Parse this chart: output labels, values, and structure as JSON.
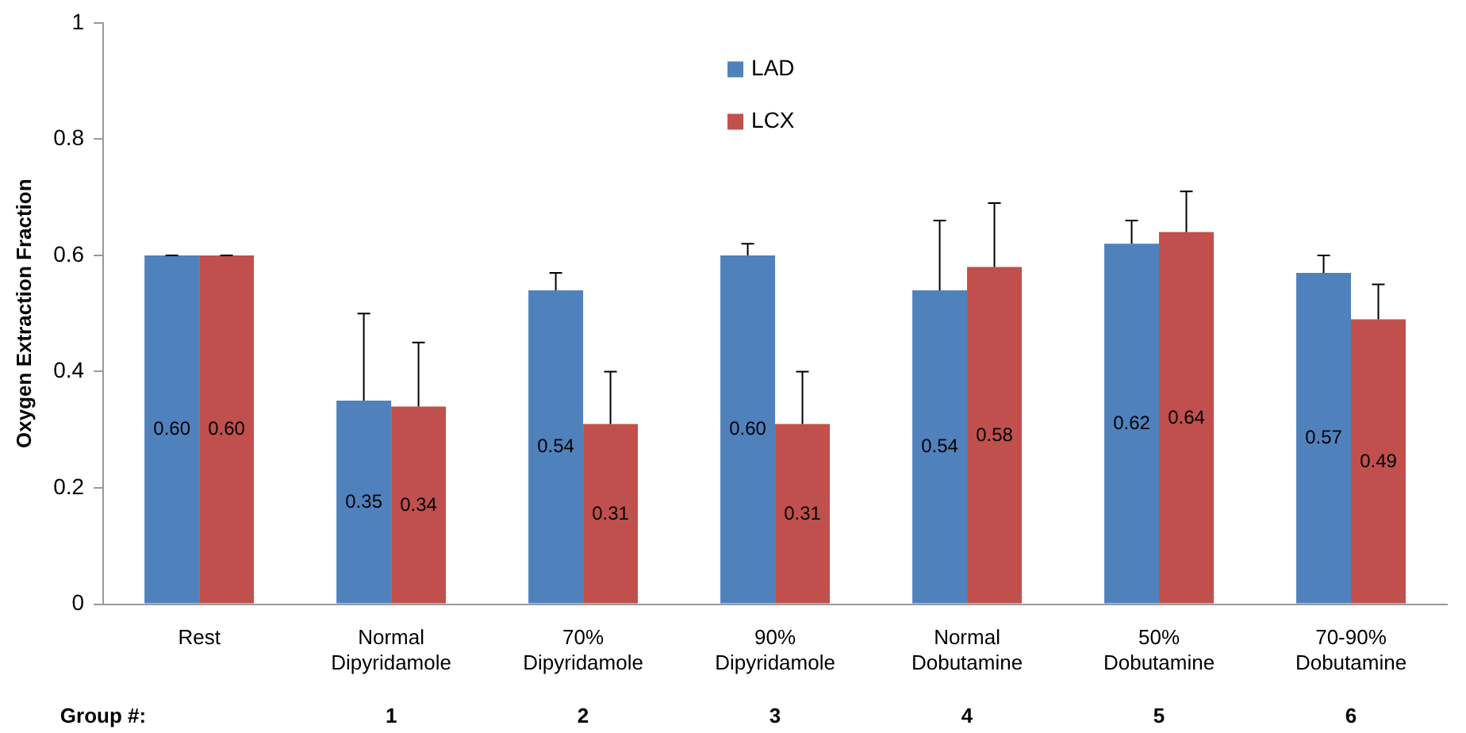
{
  "chart_data": {
    "type": "bar",
    "ylabel": "Oxygen Extraction Fraction",
    "categories": [
      "Rest",
      "Normal\nDipyridamole",
      "70%\nDipyridamole",
      "90%\nDipyridamole",
      "Normal\nDobutamine",
      "50%\nDobutamine",
      "70-90%\nDobutamine"
    ],
    "series": [
      {
        "name": "LAD",
        "color": "#4f81bd",
        "values": [
          0.6,
          0.35,
          0.54,
          0.6,
          0.54,
          0.62,
          0.57
        ],
        "value_labels": [
          "0.60",
          "0.35",
          "0.54",
          "0.60",
          "0.54",
          "0.62",
          "0.57"
        ],
        "errors": [
          [
            0.6,
            0.6
          ],
          [
            0.35,
            0.5
          ],
          [
            0.54,
            0.57
          ],
          [
            0.6,
            0.62
          ],
          [
            0.54,
            0.66
          ],
          [
            0.62,
            0.66
          ],
          [
            0.57,
            0.6
          ]
        ]
      },
      {
        "name": "LCX",
        "color": "#c0504d",
        "values": [
          0.6,
          0.34,
          0.31,
          0.31,
          0.58,
          0.64,
          0.49
        ],
        "value_labels": [
          "0.60",
          "0.34",
          "0.31",
          "0.31",
          "0.58",
          "0.64",
          "0.49"
        ],
        "errors": [
          [
            0.6,
            0.6
          ],
          [
            0.34,
            0.45
          ],
          [
            0.31,
            0.4
          ],
          [
            0.31,
            0.4
          ],
          [
            0.58,
            0.69
          ],
          [
            0.64,
            0.71
          ],
          [
            0.49,
            0.55
          ]
        ]
      }
    ],
    "ylim": [
      0,
      1
    ],
    "yticks": [
      0,
      0.2,
      0.4,
      0.6,
      0.8,
      1
    ],
    "grid": false,
    "legend": "top",
    "annotations": [
      "Group #:",
      "1",
      "2",
      "3",
      "4",
      "5",
      "6"
    ]
  }
}
